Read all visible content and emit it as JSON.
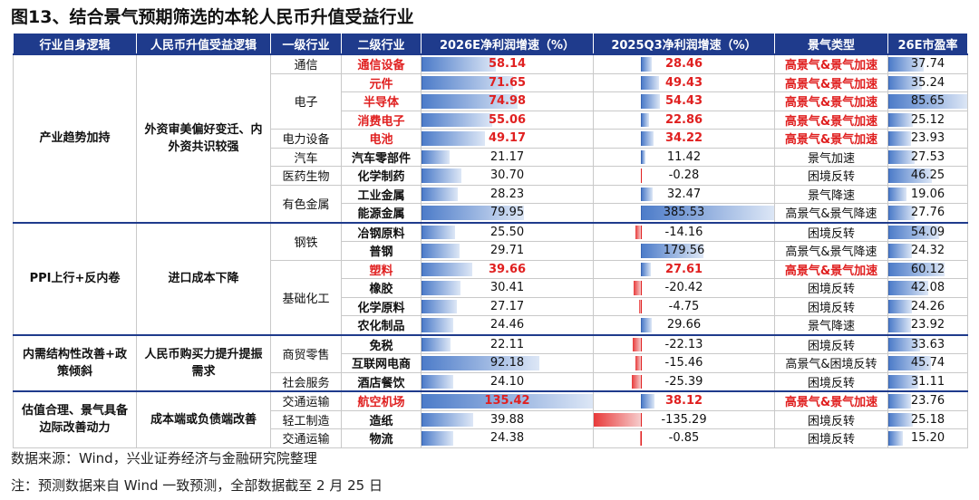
{
  "title": "图13、结合景气预期筛选的本轮人民币升值受益行业",
  "table": {
    "headers": [
      "行业自身逻辑",
      "人民币升值受益逻辑",
      "一级行业",
      "二级行业",
      "2026E净利润增速（%）",
      "2025Q3净利润增速（%）",
      "景气类型",
      "26E市盈率"
    ],
    "groups": [
      {
        "logic": "产业趋势加持",
        "rmb_logic": "外资审美偏好变迁、内外资共识较强",
        "industries": [
          {
            "name": "通信",
            "rows": [
              {
                "cells": [
                  "通信设备",
                  "58.14",
                  "28.46",
                  "高景气&景气加速",
                  "37.74"
                ],
                "highlight": true
              }
            ]
          },
          {
            "name": "电子",
            "rows": [
              {
                "cells": [
                  "元件",
                  "71.65",
                  "49.43",
                  "高景气&景气加速",
                  "35.24"
                ],
                "highlight": true
              },
              {
                "cells": [
                  "半导体",
                  "74.98",
                  "54.43",
                  "高景气&景气加速",
                  "85.65"
                ],
                "highlight": true
              },
              {
                "cells": [
                  "消费电子",
                  "55.06",
                  "22.86",
                  "高景气&景气加速",
                  "25.12"
                ],
                "highlight": true
              }
            ]
          },
          {
            "name": "电力设备",
            "rows": [
              {
                "cells": [
                  "电池",
                  "49.17",
                  "34.22",
                  "高景气&景气加速",
                  "23.93"
                ],
                "highlight": true
              }
            ]
          },
          {
            "name": "汽车",
            "rows": [
              {
                "cells": [
                  "汽车零部件",
                  "21.17",
                  "11.42",
                  "景气加速",
                  "27.53"
                ],
                "highlight": false
              }
            ]
          },
          {
            "name": "医药生物",
            "rows": [
              {
                "cells": [
                  "化学制药",
                  "30.70",
                  "-0.28",
                  "困境反转",
                  "46.25"
                ],
                "highlight": false
              }
            ]
          },
          {
            "name": "有色金属",
            "rows": [
              {
                "cells": [
                  "工业金属",
                  "28.23",
                  "32.47",
                  "景气降速",
                  "19.06"
                ],
                "highlight": false
              },
              {
                "cells": [
                  "能源金属",
                  "79.95",
                  "385.53",
                  "高景气&景气降速",
                  "27.76"
                ],
                "highlight": false
              }
            ]
          }
        ]
      },
      {
        "logic": "PPI上行+反内卷",
        "rmb_logic": "进口成本下降",
        "industries": [
          {
            "name": "钢铁",
            "rows": [
              {
                "cells": [
                  "冶钢原料",
                  "25.50",
                  "-14.16",
                  "困境反转",
                  "54.09"
                ],
                "highlight": false
              },
              {
                "cells": [
                  "普钢",
                  "29.71",
                  "179.56",
                  "高景气&景气降速",
                  "24.32"
                ],
                "highlight": false
              }
            ]
          },
          {
            "name": "基础化工",
            "rows": [
              {
                "cells": [
                  "塑料",
                  "39.66",
                  "27.61",
                  "高景气&景气加速",
                  "60.12"
                ],
                "highlight": true
              },
              {
                "cells": [
                  "橡胶",
                  "30.41",
                  "-20.42",
                  "困境反转",
                  "42.08"
                ],
                "highlight": false
              },
              {
                "cells": [
                  "化学原料",
                  "27.17",
                  "-4.75",
                  "困境反转",
                  "24.26"
                ],
                "highlight": false
              },
              {
                "cells": [
                  "农化制品",
                  "24.46",
                  "29.66",
                  "景气降速",
                  "23.92"
                ],
                "highlight": false
              }
            ]
          }
        ]
      },
      {
        "logic": "内需结构性改善+政策倾斜",
        "rmb_logic": "人民币购买力提升提振需求",
        "industries": [
          {
            "name": "商贸零售",
            "rows": [
              {
                "cells": [
                  "免税",
                  "22.11",
                  "-22.13",
                  "困境反转",
                  "33.63"
                ],
                "highlight": false
              },
              {
                "cells": [
                  "互联网电商",
                  "92.18",
                  "-15.46",
                  "高景气&困境反转",
                  "45.74"
                ],
                "highlight": false
              }
            ]
          },
          {
            "name": "社会服务",
            "rows": [
              {
                "cells": [
                  "酒店餐饮",
                  "24.10",
                  "-25.39",
                  "困境反转",
                  "31.11"
                ],
                "highlight": false
              }
            ]
          }
        ]
      },
      {
        "logic": "估值合理、景气具备边际改善动力",
        "rmb_logic": "成本端或负债端改善",
        "industries": [
          {
            "name": "交通运输",
            "rows": [
              {
                "cells": [
                  "航空机场",
                  "135.42",
                  "38.12",
                  "高景气&景气加速",
                  "23.76"
                ],
                "highlight": true
              }
            ]
          },
          {
            "name": "轻工制造",
            "rows": [
              {
                "cells": [
                  "造纸",
                  "39.88",
                  "-135.29",
                  "困境反转",
                  "25.18"
                ],
                "highlight": false
              }
            ]
          },
          {
            "name": "交通运输",
            "rows": [
              {
                "cells": [
                  "物流",
                  "24.38",
                  "-0.85",
                  "困境反转",
                  "15.20"
                ],
                "highlight": false
              }
            ]
          }
        ]
      }
    ]
  },
  "source": "数据来源：Wind，兴业证券经济与金融研究院整理",
  "note": "注：预测数据来自 Wind 一致预测，全部数据截至 2 月 25 日"
}
